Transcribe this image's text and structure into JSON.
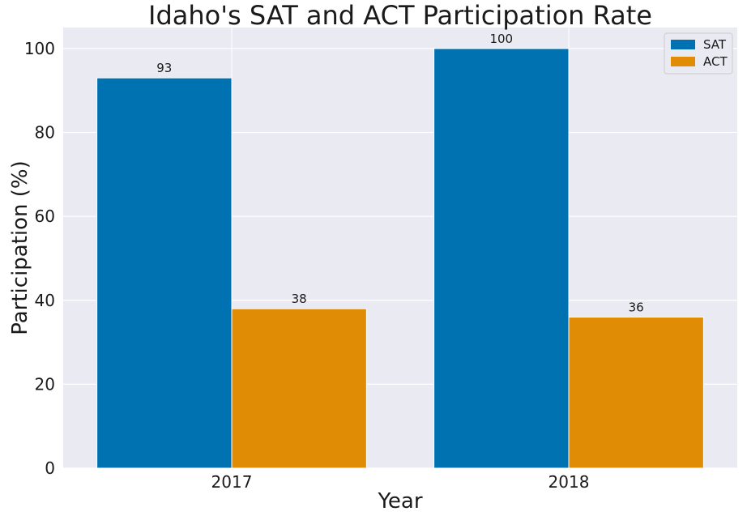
{
  "chart_data": {
    "type": "bar",
    "title": "Idaho's SAT and ACT Participation Rate",
    "xlabel": "Year",
    "ylabel": "Participation (%)",
    "categories": [
      "2017",
      "2018"
    ],
    "series": [
      {
        "name": "SAT",
        "values": [
          93,
          100
        ],
        "color": "#0072b2"
      },
      {
        "name": "ACT",
        "values": [
          38,
          36
        ],
        "color": "#e08c05"
      }
    ],
    "ylim": [
      0,
      105
    ],
    "yticks": [
      0,
      20,
      40,
      60,
      80,
      100
    ],
    "grid": true,
    "legend_position": "top-right",
    "plot_background": "#eaeaf2",
    "grid_color": "#ffffff"
  }
}
